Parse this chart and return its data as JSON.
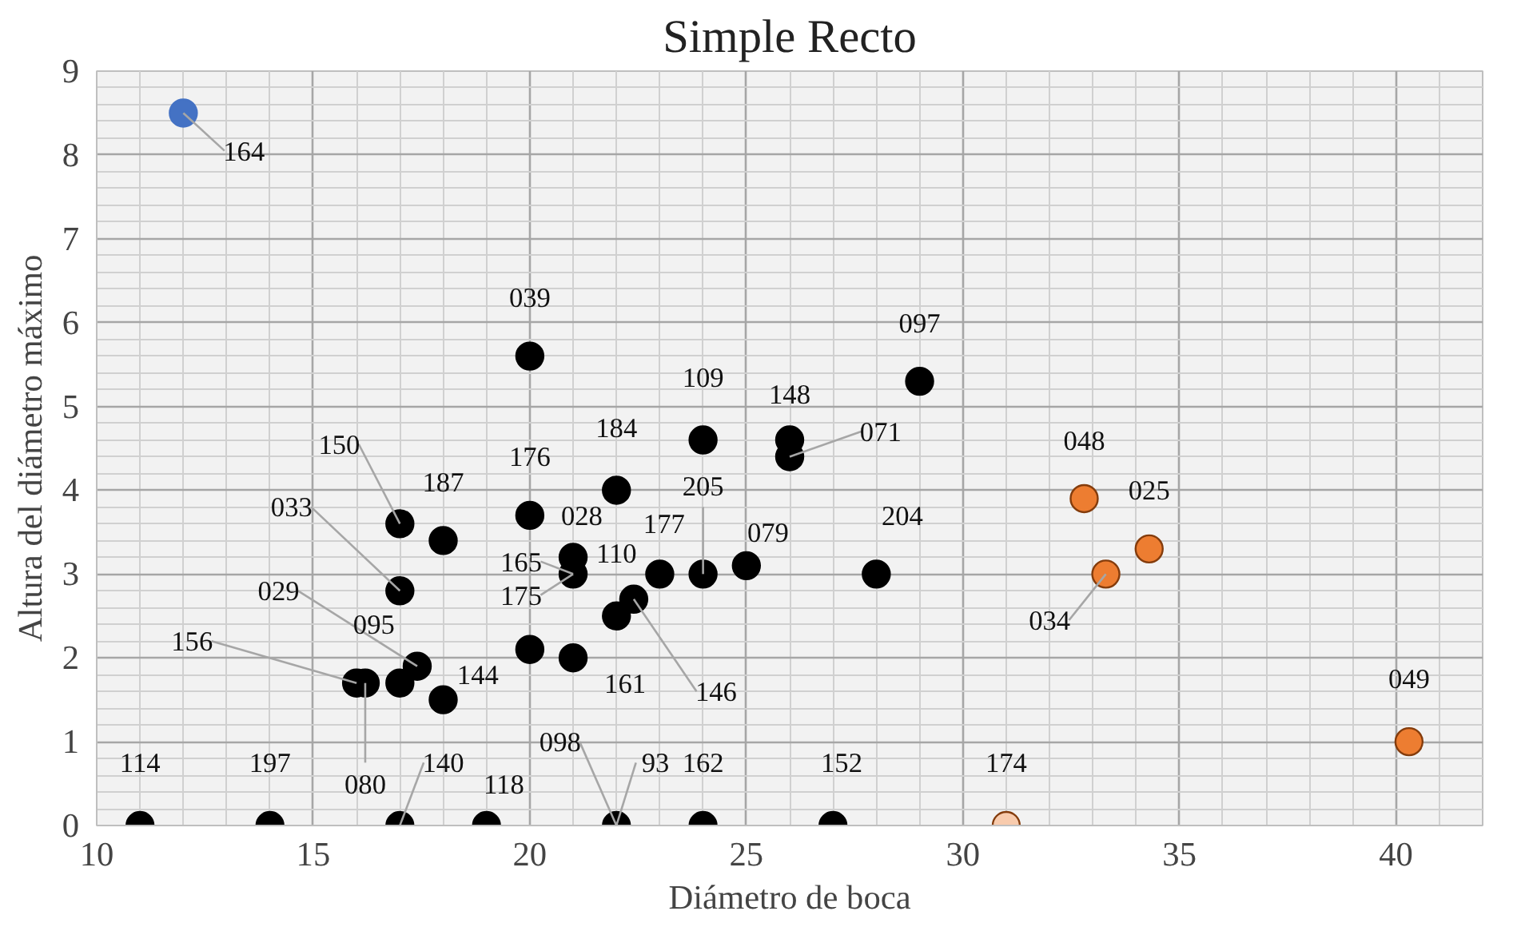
{
  "chart_data": {
    "type": "scatter",
    "title": "Simple Recto",
    "xlabel": "Diámetro de boca",
    "ylabel": "Altura del diámetro máximo",
    "xlim": [
      10,
      42
    ],
    "ylim": [
      0,
      9
    ],
    "xticks": [
      10,
      15,
      20,
      25,
      30,
      35,
      40
    ],
    "yticks": [
      0,
      1,
      2,
      3,
      4,
      5,
      6,
      7,
      8,
      9
    ],
    "grid": true,
    "marker": "circle",
    "series": [
      {
        "color": "#000000",
        "x": [
          11,
          14,
          17,
          19,
          22,
          24,
          27,
          16.2,
          16,
          17,
          17.4,
          18,
          17,
          17,
          18,
          20,
          20,
          21,
          21,
          22.4,
          22,
          23,
          24,
          25,
          22,
          24,
          26,
          26,
          29,
          28,
          20,
          21
        ],
        "values": [
          0,
          0,
          0,
          0,
          0,
          0,
          0,
          1.7,
          1.7,
          1.7,
          1.9,
          1.5,
          2.8,
          3.6,
          3.4,
          3.7,
          5.6,
          3.2,
          3.0,
          2.7,
          2.5,
          3.0,
          3.0,
          3.1,
          4.0,
          4.6,
          4.6,
          4.4,
          5.3,
          3.0,
          2.1,
          2.0
        ]
      },
      {
        "color": "#4472c4",
        "x": [
          12
        ],
        "values": [
          8.5
        ]
      },
      {
        "color": "#ed7d31",
        "x": [
          32.8,
          34.3,
          33.3,
          40.3
        ],
        "values": [
          3.9,
          3.3,
          3.0,
          1.0
        ]
      },
      {
        "color": "#f8cbad",
        "x": [
          31
        ],
        "values": [
          0
        ]
      }
    ],
    "annotations": [
      {
        "text": "114",
        "x": 11,
        "y": 0
      },
      {
        "text": "197",
        "x": 14,
        "y": 0
      },
      {
        "text": "140",
        "x": 17,
        "y": 0
      },
      {
        "text": "118",
        "x": 19,
        "y": 0
      },
      {
        "text": "098",
        "x": 22,
        "y": 0
      },
      {
        "text": "93",
        "x": 22,
        "y": 0
      },
      {
        "text": "162",
        "x": 24,
        "y": 0
      },
      {
        "text": "152",
        "x": 27,
        "y": 0
      },
      {
        "text": "080",
        "x": 16.2,
        "y": 1.7
      },
      {
        "text": "156",
        "x": 16,
        "y": 1.7
      },
      {
        "text": "095",
        "x": 17,
        "y": 1.7
      },
      {
        "text": "029",
        "x": 17.4,
        "y": 1.9
      },
      {
        "text": "144",
        "x": 18,
        "y": 1.5
      },
      {
        "text": "033",
        "x": 17,
        "y": 2.8
      },
      {
        "text": "150",
        "x": 17,
        "y": 3.6
      },
      {
        "text": "187",
        "x": 18,
        "y": 3.4
      },
      {
        "text": "176",
        "x": 20,
        "y": 3.7
      },
      {
        "text": "039",
        "x": 20,
        "y": 5.6
      },
      {
        "text": "028",
        "x": 21,
        "y": 3.2
      },
      {
        "text": "165",
        "x": 21,
        "y": 3.0
      },
      {
        "text": "175",
        "x": 21,
        "y": 3.0
      },
      {
        "text": "110",
        "x": 22.4,
        "y": 2.7
      },
      {
        "text": "161",
        "x": 22,
        "y": 2.5
      },
      {
        "text": "146",
        "x": 22.4,
        "y": 2.7
      },
      {
        "text": "177",
        "x": 23,
        "y": 3.0
      },
      {
        "text": "205",
        "x": 24,
        "y": 3.0
      },
      {
        "text": "079",
        "x": 25,
        "y": 3.1
      },
      {
        "text": "184",
        "x": 22,
        "y": 4.0
      },
      {
        "text": "109",
        "x": 24,
        "y": 4.6
      },
      {
        "text": "148",
        "x": 26,
        "y": 4.6
      },
      {
        "text": "071",
        "x": 26,
        "y": 4.4
      },
      {
        "text": "097",
        "x": 29,
        "y": 5.3
      },
      {
        "text": "204",
        "x": 28,
        "y": 3.0
      },
      {
        "text": "164",
        "x": 12,
        "y": 8.5
      },
      {
        "text": "048",
        "x": 32.8,
        "y": 3.9
      },
      {
        "text": "025",
        "x": 34.3,
        "y": 3.3
      },
      {
        "text": "034",
        "x": 33.3,
        "y": 3.0
      },
      {
        "text": "049",
        "x": 40.3,
        "y": 1.0
      },
      {
        "text": "174",
        "x": 31,
        "y": 0
      }
    ]
  }
}
